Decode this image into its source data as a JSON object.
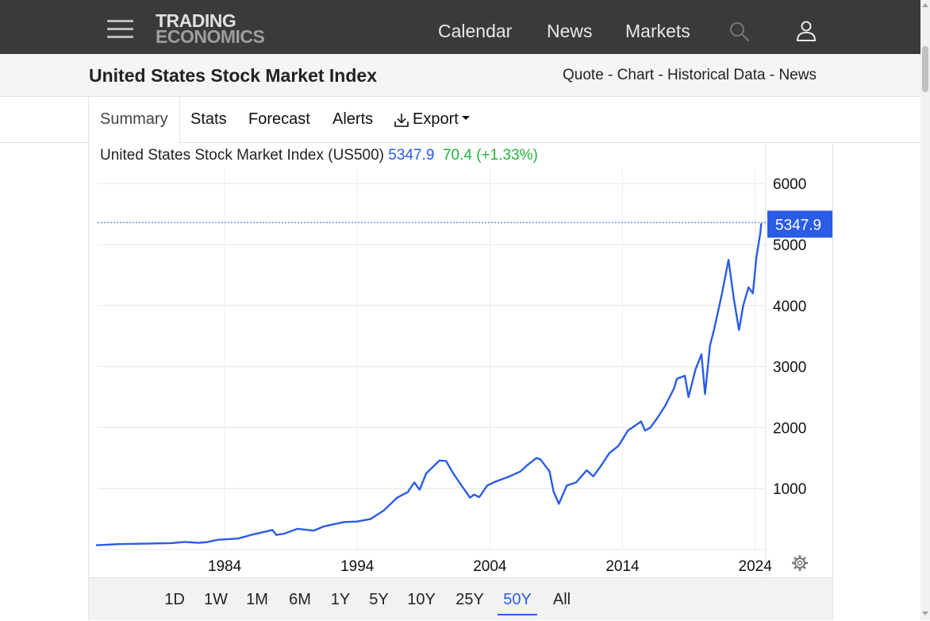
{
  "nav": {
    "logo_line1": "TRADING",
    "logo_line2": "ECONOMICS",
    "links": [
      "Calendar",
      "News",
      "Markets"
    ]
  },
  "title_bar": {
    "title": "United States Stock Market Index",
    "quick_links": [
      "Quote",
      "Chart",
      "Historical Data",
      "News"
    ],
    "separator": " - "
  },
  "tabs": {
    "summary": "Summary",
    "stats": "Stats",
    "forecast": "Forecast",
    "alerts": "Alerts",
    "export": "Export"
  },
  "quote": {
    "name": "United States Stock Market Index (US500)",
    "price": "5347.9",
    "change": "70.4 (+1.33%)"
  },
  "colors": {
    "accent": "#2a5ce6",
    "positive": "#21b43a",
    "nav_bg": "#3a3a3a"
  },
  "chart_data": {
    "type": "line",
    "series": [
      {
        "x": [
          1974.3,
          1976,
          1978,
          1980,
          1981,
          1982,
          1982.6,
          1983.5,
          1985,
          1986,
          1987.6,
          1987.9,
          1988.5,
          1989.5,
          1990.7,
          1991.5,
          1993,
          1994,
          1995,
          1996,
          1997,
          1997.8,
          1998.3,
          1998.7,
          1999.2,
          2000.2,
          2000.7,
          2001.2,
          2001.7,
          2002.5,
          2002.8,
          2003.2,
          2003.8,
          2004.5,
          2005.5,
          2006.3,
          2006.8,
          2007.5,
          2007.8,
          2008.5,
          2008.8,
          2009.2,
          2009.8,
          2010.5,
          2011.3,
          2011.8,
          2012.4,
          2013,
          2013.7,
          2014.4,
          2015.4,
          2015.7,
          2016.1,
          2016.6,
          2017.2,
          2017.9,
          2018.1,
          2018.7,
          2018.98,
          2019.5,
          2019.95,
          2020.22,
          2020.6,
          2020.9,
          2021.5,
          2021.99,
          2022.4,
          2022.78,
          2023.1,
          2023.5,
          2023.83,
          2024.1,
          2024.4,
          2024.46
        ],
        "y": [
          70,
          88,
          96,
          105,
          125,
          110,
          120,
          160,
          180,
          240,
          320,
          240,
          260,
          340,
          310,
          380,
          450,
          460,
          500,
          640,
          850,
          940,
          1100,
          980,
          1250,
          1460,
          1450,
          1260,
          1100,
          850,
          900,
          860,
          1050,
          1120,
          1200,
          1280,
          1380,
          1500,
          1480,
          1280,
          950,
          750,
          1050,
          1100,
          1300,
          1200,
          1380,
          1580,
          1700,
          1950,
          2100,
          1950,
          2000,
          2150,
          2350,
          2650,
          2800,
          2850,
          2500,
          2950,
          3200,
          2550,
          3350,
          3600,
          4200,
          4750,
          4100,
          3600,
          4000,
          4300,
          4200,
          4800,
          5200,
          5348
        ]
      }
    ],
    "x_ticks": [
      "1984",
      "1994",
      "2004",
      "2014",
      "2024"
    ],
    "y_ticks": [
      "1000",
      "2000",
      "3000",
      "4000",
      "5000",
      "6000"
    ],
    "y_axis_position": "right",
    "ylim": [
      0,
      6500
    ],
    "xlim": [
      1974.3,
      2024.5
    ],
    "last_value_label": "5347.9",
    "grid": true
  },
  "ranges": [
    "1D",
    "1W",
    "1M",
    "6M",
    "1Y",
    "5Y",
    "10Y",
    "25Y",
    "50Y",
    "All"
  ],
  "active_range": "50Y"
}
